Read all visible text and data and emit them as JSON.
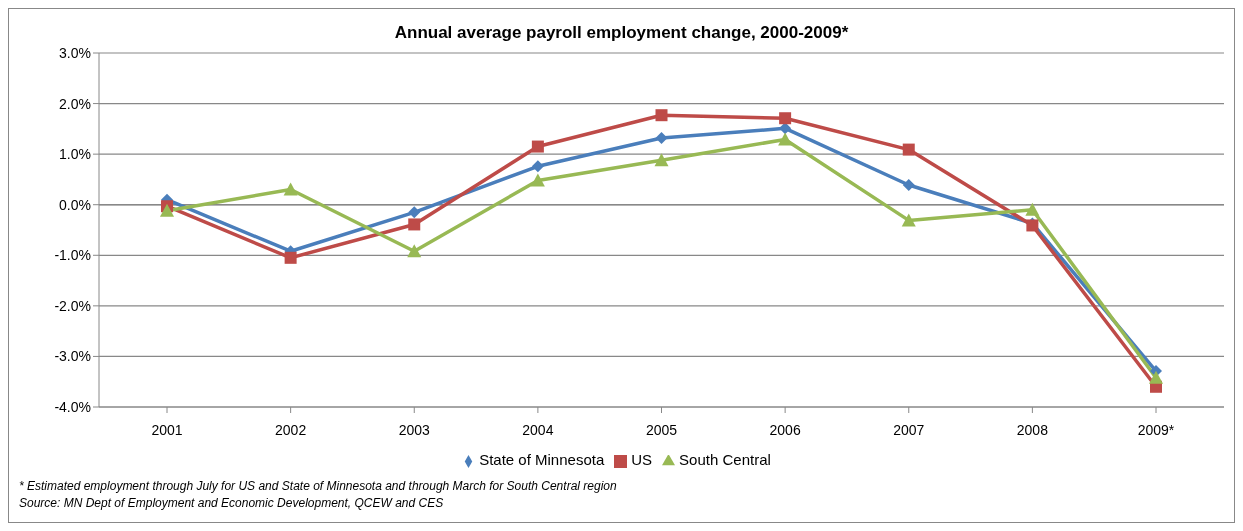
{
  "chart_data": {
    "type": "line",
    "title": "Annual average payroll employment change, 2000-2009*",
    "categories": [
      "2001",
      "2002",
      "2003",
      "2004",
      "2005",
      "2006",
      "2007",
      "2008",
      "2009*"
    ],
    "series": [
      {
        "name": "State of Minnesota",
        "color": "#4a7ebb",
        "marker": "diamond",
        "values": [
          0.1,
          -0.92,
          -0.15,
          0.76,
          1.32,
          1.51,
          0.39,
          -0.37,
          -3.29
        ]
      },
      {
        "name": "US",
        "color": "#be4b48",
        "marker": "square",
        "values": [
          -0.03,
          -1.05,
          -0.39,
          1.15,
          1.77,
          1.71,
          1.09,
          -0.41,
          -3.6
        ]
      },
      {
        "name": "South Central",
        "color": "#98b954",
        "marker": "triangle",
        "values": [
          -0.12,
          0.3,
          -0.92,
          0.48,
          0.88,
          1.29,
          -0.31,
          -0.1,
          -3.42
        ]
      }
    ],
    "ylim": [
      -4,
      3
    ],
    "yticks": [
      {
        "value": -4,
        "label": "-4.0%"
      },
      {
        "value": -3,
        "label": "-3.0%"
      },
      {
        "value": -2,
        "label": "-2.0%"
      },
      {
        "value": -1,
        "label": "-1.0%"
      },
      {
        "value": 0,
        "label": "0.0%"
      },
      {
        "value": 1,
        "label": "1.0%"
      },
      {
        "value": 2,
        "label": "2.0%"
      },
      {
        "value": 3,
        "label": "3.0%"
      }
    ],
    "grid": "y",
    "legend": "bottom",
    "line_style": "solid",
    "annotations": [
      "* Estimated employment through July for US and State of Minnesota and through March for South Central region",
      "Source: MN Dept of Employment and Economic Development, QCEW and CES"
    ]
  }
}
